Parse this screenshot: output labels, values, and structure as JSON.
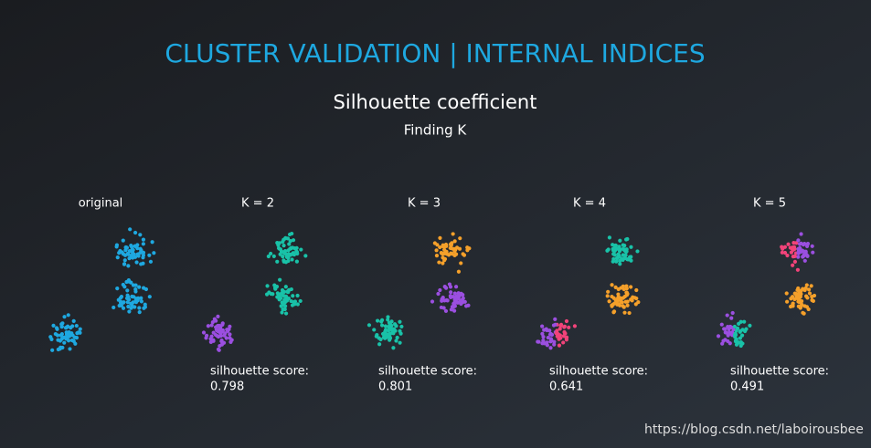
{
  "slide": {
    "title": "CLUSTER VALIDATION | INTERNAL INDICES",
    "heading": "Silhouette coefficient",
    "subheading": "Finding K",
    "panels": [
      {
        "label": "original"
      },
      {
        "label": "K = 2",
        "score_label": "silhouette score:",
        "score": 0.798
      },
      {
        "label": "K = 3",
        "score_label": "silhouette score:",
        "score": 0.801
      },
      {
        "label": "K = 4",
        "score_label": "silhouette score:",
        "score": 0.641
      },
      {
        "label": "K = 5",
        "score_label": "silhouette score:",
        "score": 0.491
      }
    ],
    "watermark": "https://blog.csdn.net/laboirousbee"
  }
}
